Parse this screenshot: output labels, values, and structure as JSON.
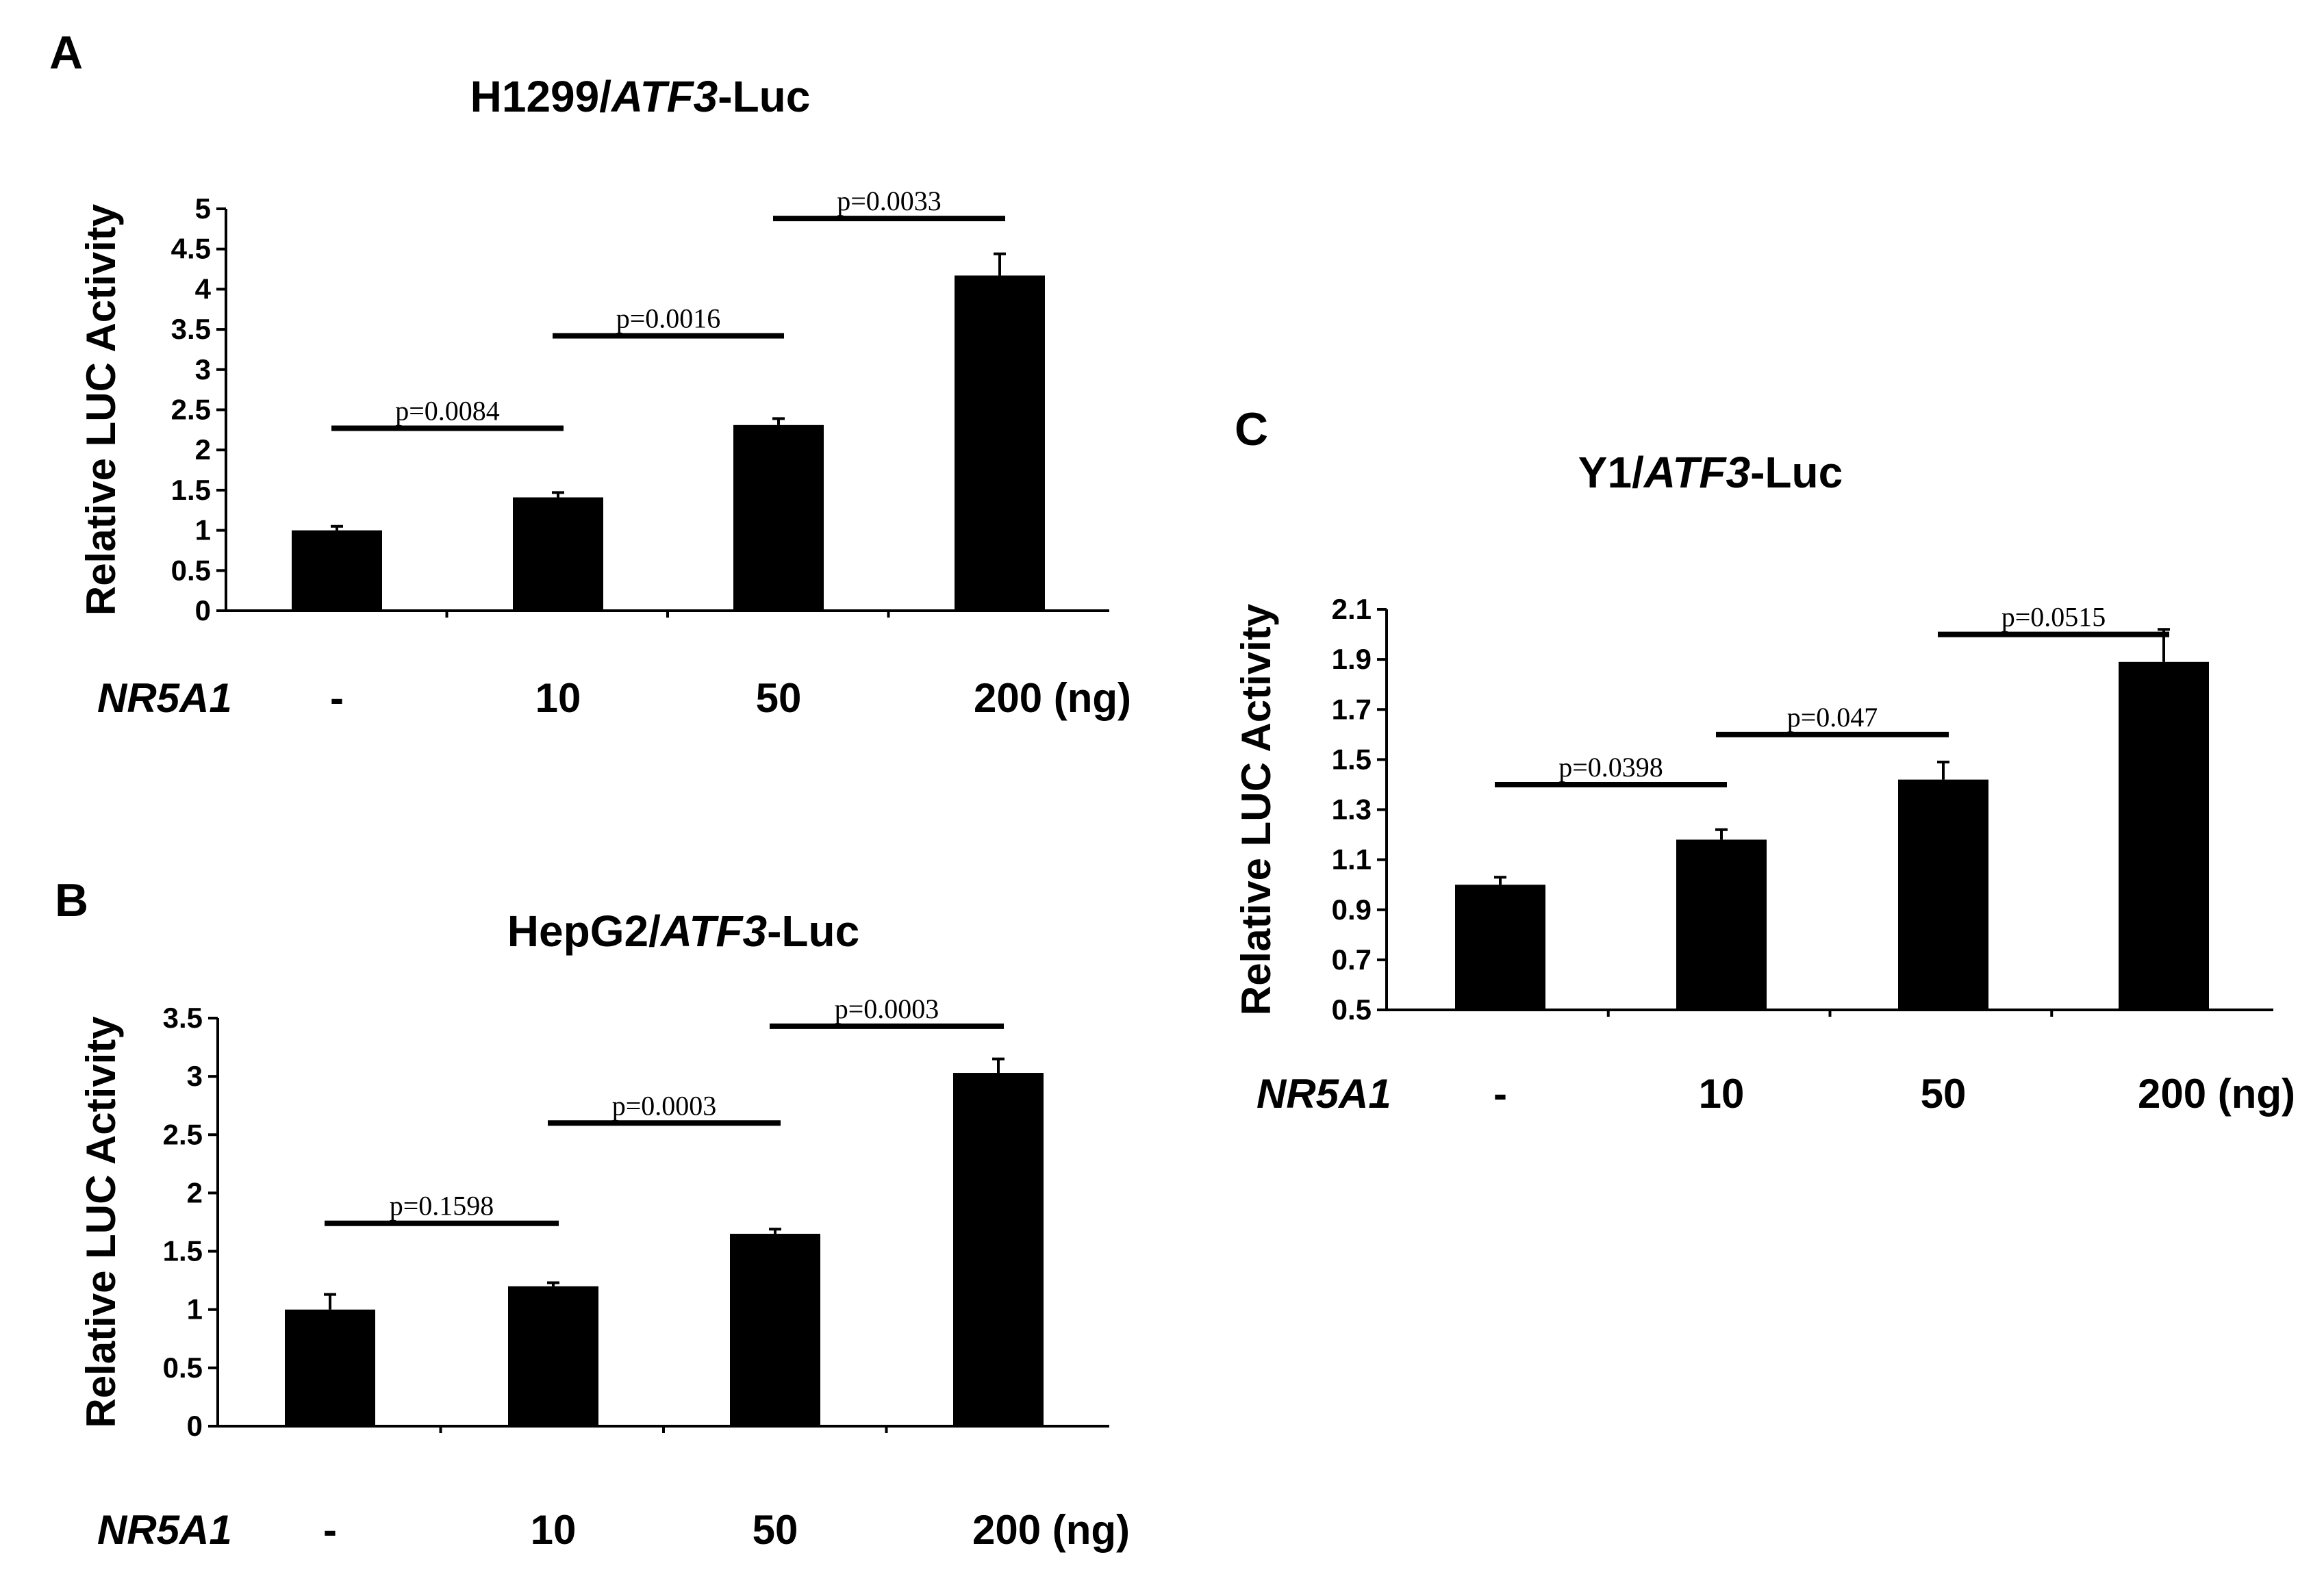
{
  "figure": {
    "x_variable": "NR5A1",
    "x_unit_suffix": " (ng)"
  },
  "chart_data": [
    {
      "panel": "A",
      "type": "bar",
      "title": "H1299/ATF3-Luc",
      "title_parts": [
        "H1299/",
        "ATF3",
        "-Luc"
      ],
      "ylabel": "Relative LUC Activity",
      "ylim": [
        0,
        5
      ],
      "yticks": [
        "0",
        "0.5",
        "1",
        "1.5",
        "2",
        "2.5",
        "3",
        "3.5",
        "4",
        "4.5",
        "5"
      ],
      "ytick_values": [
        0,
        0.5,
        1,
        1.5,
        2,
        2.5,
        3,
        3.5,
        4,
        4.5,
        5
      ],
      "categories": [
        "-",
        "10",
        "50",
        "200"
      ],
      "values": [
        1.0,
        1.41,
        2.31,
        4.17
      ],
      "errors": [
        0.05,
        0.06,
        0.08,
        0.27
      ],
      "comparisons": [
        {
          "from": 0,
          "to": 1,
          "label": "p=0.0084",
          "y": 2.27
        },
        {
          "from": 1,
          "to": 2,
          "label": "p=0.0016",
          "y": 3.42
        },
        {
          "from": 2,
          "to": 3,
          "label": "p=0.0033",
          "y": 4.88
        }
      ],
      "grid": false
    },
    {
      "panel": "B",
      "type": "bar",
      "title": "HepG2/ATF3-Luc",
      "title_parts": [
        "HepG2/",
        "ATF3",
        "-Luc"
      ],
      "ylabel": "Relative LUC Activity",
      "ylim": [
        0,
        3.5
      ],
      "yticks": [
        "0",
        "0.5",
        "1",
        "1.5",
        "2",
        "2.5",
        "3",
        "3.5"
      ],
      "ytick_values": [
        0,
        0.5,
        1,
        1.5,
        2,
        2.5,
        3,
        3.5
      ],
      "categories": [
        "-",
        "10",
        "50",
        "200"
      ],
      "values": [
        1.0,
        1.2,
        1.65,
        3.03
      ],
      "errors": [
        0.13,
        0.03,
        0.04,
        0.12
      ],
      "comparisons": [
        {
          "from": 0,
          "to": 1,
          "label": "p=0.1598",
          "y": 1.74
        },
        {
          "from": 1,
          "to": 2,
          "label": "p=0.0003",
          "y": 2.6
        },
        {
          "from": 2,
          "to": 3,
          "label": "p=0.0003",
          "y": 3.43
        }
      ],
      "grid": false
    },
    {
      "panel": "C",
      "type": "bar",
      "title": "Y1/ATF3-Luc",
      "title_parts": [
        "Y1/",
        "ATF3",
        "-Luc"
      ],
      "ylabel": "Relative LUC Activity",
      "ylim": [
        0.5,
        2.1
      ],
      "yticks": [
        "0.5",
        "0.7",
        "0.9",
        "1.1",
        "1.3",
        "1.5",
        "1.7",
        "1.9",
        "2.1"
      ],
      "ytick_values": [
        0.5,
        0.7,
        0.9,
        1.1,
        1.3,
        1.5,
        1.7,
        1.9,
        2.1
      ],
      "categories": [
        "-",
        "10",
        "50",
        "200"
      ],
      "values": [
        1.0,
        1.18,
        1.42,
        1.89
      ],
      "errors": [
        0.03,
        0.04,
        0.07,
        0.13
      ],
      "comparisons": [
        {
          "from": 0,
          "to": 1,
          "label": "p=0.0398",
          "y": 1.4
        },
        {
          "from": 1,
          "to": 2,
          "label": "p=0.047",
          "y": 1.6
        },
        {
          "from": 2,
          "to": 3,
          "label": "p=0.0515",
          "y": 2.0
        }
      ],
      "grid": false
    }
  ]
}
